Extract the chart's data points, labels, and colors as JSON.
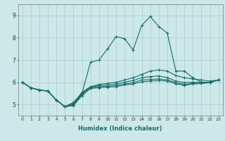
{
  "xlabel": "Humidex (Indice chaleur)",
  "xlim": [
    -0.5,
    23.5
  ],
  "ylim": [
    4.5,
    9.5
  ],
  "yticks": [
    5,
    6,
    7,
    8,
    9
  ],
  "xticks": [
    0,
    1,
    2,
    3,
    4,
    5,
    6,
    7,
    8,
    9,
    10,
    11,
    12,
    13,
    14,
    15,
    16,
    17,
    18,
    19,
    20,
    21,
    22,
    23
  ],
  "bg_color": "#cce8e8",
  "grid_color": "#aacccc",
  "line_color": "#1a6b6b",
  "series": [
    [
      6.0,
      5.75,
      5.65,
      5.6,
      5.2,
      4.9,
      5.1,
      5.5,
      6.9,
      7.0,
      7.5,
      8.05,
      7.95,
      7.45,
      8.55,
      8.95,
      8.5,
      8.2,
      6.5,
      6.5,
      6.2,
      6.0,
      6.0,
      6.1
    ],
    [
      6.0,
      5.75,
      5.65,
      5.6,
      5.2,
      4.9,
      5.05,
      5.55,
      5.8,
      5.9,
      5.95,
      6.0,
      6.1,
      6.2,
      6.35,
      6.5,
      6.55,
      6.5,
      6.3,
      6.2,
      6.15,
      6.1,
      6.05,
      6.1
    ],
    [
      6.0,
      5.75,
      5.65,
      5.6,
      5.2,
      4.9,
      5.0,
      5.5,
      5.78,
      5.85,
      5.88,
      5.92,
      6.0,
      6.08,
      6.2,
      6.25,
      6.28,
      6.2,
      6.05,
      5.98,
      6.0,
      5.99,
      6.0,
      6.1
    ],
    [
      6.0,
      5.75,
      5.65,
      5.6,
      5.2,
      4.9,
      4.98,
      5.45,
      5.75,
      5.8,
      5.82,
      5.85,
      5.92,
      5.98,
      6.1,
      6.12,
      6.15,
      6.1,
      5.98,
      5.9,
      5.95,
      5.96,
      5.99,
      6.1
    ],
    [
      6.0,
      5.75,
      5.65,
      5.6,
      5.2,
      4.9,
      4.95,
      5.4,
      5.72,
      5.75,
      5.78,
      5.8,
      5.88,
      5.92,
      6.02,
      6.05,
      6.08,
      6.05,
      5.93,
      5.85,
      5.92,
      5.94,
      5.98,
      6.1
    ]
  ]
}
